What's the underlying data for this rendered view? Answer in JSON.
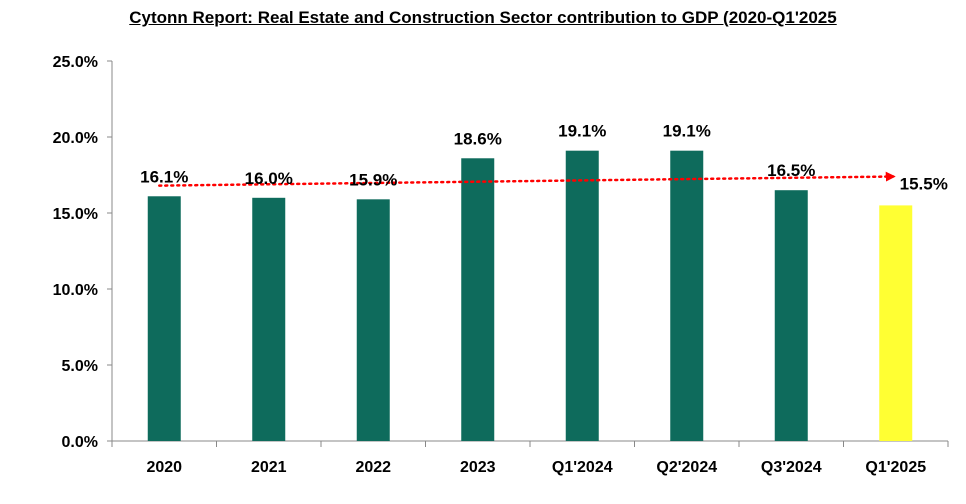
{
  "chart_data": {
    "type": "bar",
    "title": "Cytonn Report: Real Estate and Construction Sector contribution to GDP (2020-Q1'2025",
    "categories": [
      "2020",
      "2021",
      "2022",
      "2023",
      "Q1'2024",
      "Q2'2024",
      "Q3'2024",
      "Q1'2025"
    ],
    "values": [
      16.1,
      16.0,
      15.9,
      18.6,
      19.1,
      19.1,
      16.5,
      15.5
    ],
    "value_labels": [
      "16.1%",
      "16.0%",
      "15.9%",
      "18.6%",
      "19.1%",
      "19.1%",
      "16.5%",
      "15.5%"
    ],
    "y_ticks": [
      0,
      5,
      10,
      15,
      20,
      25
    ],
    "y_tick_labels": [
      "0.0%",
      "5.0%",
      "10.0%",
      "15.0%",
      "20.0%",
      "25.0%"
    ],
    "ylim": [
      0,
      25
    ],
    "xlabel": "",
    "ylabel": "",
    "grid": false,
    "legend": "none",
    "colors": {
      "bar": "#0e6b5c",
      "highlight_bar": "#ffff33",
      "trendline": "#ff0000"
    },
    "highlight_index": 7,
    "trendline": {
      "style": "dotted-arrow",
      "start": 16.8,
      "end": 17.4
    }
  }
}
